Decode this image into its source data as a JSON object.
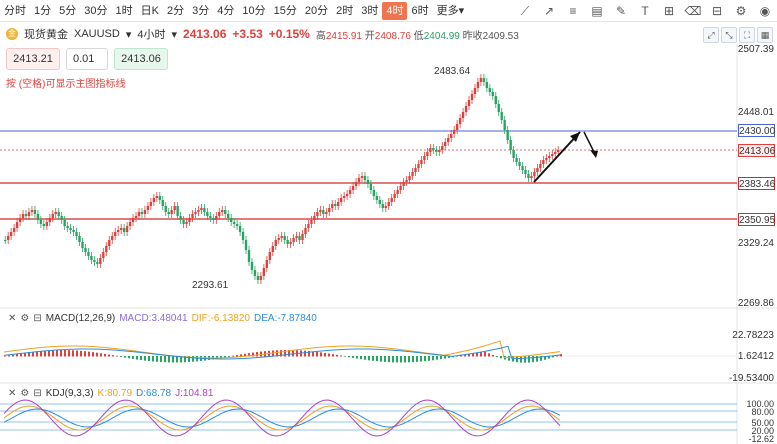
{
  "toolbar": {
    "timeframes": [
      "分时",
      "1分",
      "5分",
      "30分",
      "1时",
      "日K",
      "2分",
      "3分",
      "4分",
      "10分",
      "15分",
      "20分",
      "2时",
      "3时",
      "4时",
      "6时",
      "更多▾"
    ],
    "active_index": 14,
    "tools": [
      "trend-line-icon",
      "ray-icon",
      "horizontal-line-icon",
      "channel-icon",
      "brush-icon",
      "text-icon",
      "measure-icon",
      "eraser-icon",
      "indicator-icon",
      "settings-icon",
      "eye-icon"
    ]
  },
  "header": {
    "badge": "金",
    "instrument": "现货黄金",
    "symbol": "XAUUSD",
    "interval": "4小时",
    "price": "2413.06",
    "change": "+3.53",
    "change_pct": "+0.15%",
    "high_label": "高",
    "high": "2415.91",
    "open_label": "开",
    "open": "2408.76",
    "low_label": "低",
    "low": "2404.99",
    "prev_label": "昨收",
    "prev": "2409.53"
  },
  "order": {
    "sell": "2413.21",
    "qty": "0.01",
    "buy": "2413.06"
  },
  "hint": "按 (空格)可显示主图指标线",
  "axis": {
    "price_ticks": [
      "2507.39",
      "2448.01",
      "2413.06",
      "2329.24",
      "2269.86"
    ],
    "levels": [
      {
        "value": "2430.00",
        "color": "#4a63d8"
      },
      {
        "value": "2413.06",
        "color": "#e0403c"
      },
      {
        "value": "2383.46",
        "color": "#d22b2b"
      },
      {
        "value": "2350.95",
        "color": "#d22b2b"
      }
    ],
    "annotations": {
      "high": "2483.64",
      "low": "2293.61"
    }
  },
  "macd": {
    "title": "MACD(12,26,9)",
    "macd_label": "MACD:",
    "macd": "3.48041",
    "dif_label": "DIF:",
    "dif": "-6.13820",
    "dea_label": "DEA:",
    "dea": "-7.87840",
    "ticks": [
      "22.78223",
      "1.62412",
      "-19.53400"
    ]
  },
  "kdj": {
    "title": "KDJ(9,3,3)",
    "k_label": "K:",
    "k": "80.79",
    "d_label": "D:",
    "d": "68.78",
    "j_label": "J:",
    "j": "104.81",
    "ticks": [
      "100.00",
      "80.00",
      "50.00",
      "20.00",
      "-12.62"
    ]
  },
  "colors": {
    "up": "#e0403c",
    "down": "#25a55f",
    "accent": "#f0744d"
  }
}
